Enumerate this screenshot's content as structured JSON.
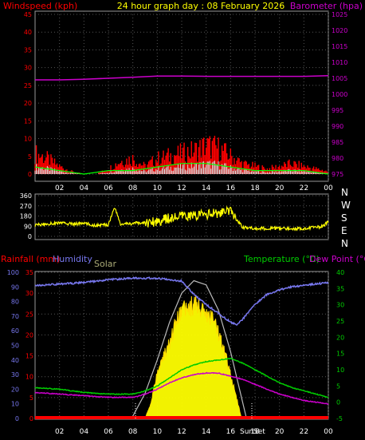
{
  "title": "24 hour graph day : 08 February 2026",
  "colors": {
    "background": "#000000",
    "windspeed": "#ff0000",
    "gust": "#ff0000",
    "wind_avg": "#00ff00",
    "wind_low": "#ffffff",
    "barometer": "#cc00cc",
    "direction": "#ffff00",
    "rainfall": "#ff0000",
    "humidity": "#7777ee",
    "solar": "#ffff00",
    "solar_label": "#aaaa77",
    "temperature": "#00cc00",
    "dewpoint": "#cc00cc",
    "grid": "#555555",
    "axis_text": "#ffffff"
  },
  "x_ticks": [
    "02",
    "04",
    "06",
    "08",
    "10",
    "12",
    "14",
    "16",
    "18",
    "20",
    "22",
    "00"
  ],
  "chart_data": [
    {
      "type": "line",
      "name": "wind-barometer",
      "left_axis_label": "Windspeed (kph)",
      "right_axis_label": "Barometer (hpa)",
      "left_ticks": [
        "0",
        "5",
        "10",
        "15",
        "20",
        "25",
        "30",
        "35",
        "40",
        "45"
      ],
      "right_ticks": [
        "975",
        "980",
        "985",
        "990",
        "995",
        "1000",
        "1005",
        "1010",
        "1015",
        "1020",
        "1025"
      ],
      "left_ylim": [
        0,
        45
      ],
      "right_ylim": [
        975,
        1025
      ],
      "x_range_hours": [
        0,
        24
      ],
      "barometer": {
        "x": [
          0,
          2,
          4,
          6,
          8,
          10,
          12,
          14,
          16,
          18,
          20,
          22,
          24
        ],
        "values": [
          1004.5,
          1004.5,
          1004.7,
          1005,
          1005.3,
          1005.7,
          1005.7,
          1005.6,
          1005.6,
          1005.6,
          1005.6,
          1005.6,
          1005.8
        ]
      },
      "gust_envelope": {
        "x": [
          0,
          1,
          2,
          3,
          4,
          5,
          6,
          7,
          8,
          9,
          10,
          11,
          12,
          13,
          14,
          15,
          16,
          17,
          18,
          19,
          20,
          21,
          22,
          23,
          24
        ],
        "values": [
          8,
          6,
          3,
          1,
          0,
          0,
          2,
          5,
          6,
          3,
          6,
          7,
          8,
          9,
          11,
          10,
          7,
          4,
          3,
          2,
          3,
          4,
          3,
          2,
          1
        ]
      },
      "avg_envelope": {
        "x": [
          0,
          2,
          4,
          6,
          8,
          10,
          12,
          14,
          16,
          18,
          20,
          22,
          24
        ],
        "values": [
          2,
          1,
          0,
          1,
          1,
          2,
          3,
          3,
          2,
          1,
          1,
          1,
          0
        ]
      }
    },
    {
      "type": "line",
      "name": "wind-direction",
      "left_ticks": [
        "0",
        "90",
        "180",
        "270",
        "360"
      ],
      "right_ticks": [
        "N",
        "W",
        "S",
        "E",
        "N"
      ],
      "ylim": [
        0,
        360
      ],
      "direction": {
        "x": [
          0,
          1,
          2,
          3,
          4,
          5,
          6,
          6.5,
          7,
          8,
          9,
          10,
          11,
          12,
          13,
          14,
          15,
          16,
          16.5,
          17,
          18,
          19,
          20,
          21,
          22,
          23,
          23.5,
          24
        ],
        "values": [
          100,
          110,
          120,
          110,
          115,
          95,
          105,
          260,
          105,
          115,
          120,
          135,
          160,
          175,
          185,
          195,
          205,
          220,
          150,
          80,
          70,
          70,
          70,
          70,
          70,
          80,
          85,
          130
        ]
      }
    },
    {
      "type": "line",
      "name": "rain-humidity-temp",
      "rain_label": "Rainfall (mm)",
      "humidity_label": "Humidity",
      "solar_label": "Solar",
      "temp_label": "Temperature (°C)",
      "dew_label": "Dew Point (°C)",
      "sun_label": "Sun",
      "set_label": "Set",
      "left_ticks": [
        "0",
        "5",
        "10",
        "15",
        "20",
        "25",
        "30",
        "35"
      ],
      "left_ylim": [
        0,
        35
      ],
      "humidity_ticks": [
        "0",
        "10",
        "20",
        "30",
        "40",
        "50",
        "60",
        "70",
        "80",
        "90",
        "100"
      ],
      "humidity_ylim": [
        0,
        100
      ],
      "right_ticks": [
        "-5",
        "0",
        "5",
        "10",
        "15",
        "20",
        "25",
        "30",
        "35",
        "40"
      ],
      "right_ylim": [
        -5,
        40
      ],
      "humidity": {
        "x": [
          0,
          2,
          4,
          6,
          8,
          10,
          12,
          13,
          14,
          15,
          16,
          16.5,
          17,
          18,
          19,
          20,
          21,
          22,
          23,
          24
        ],
        "values": [
          91,
          92,
          93,
          95,
          96,
          96,
          94,
          85,
          78,
          72,
          66,
          64,
          68,
          78,
          85,
          88,
          90,
          91,
          92,
          93
        ]
      },
      "temperature": {
        "x": [
          0,
          2,
          4,
          6,
          8,
          9,
          10,
          11,
          12,
          13,
          14,
          15,
          16,
          17,
          18,
          19,
          20,
          21,
          22,
          23,
          24
        ],
        "values": [
          4.5,
          4,
          3,
          2.5,
          2.5,
          3.5,
          5,
          7.5,
          10,
          11.5,
          12.5,
          13,
          13.5,
          12,
          10,
          8,
          6,
          4.5,
          3.5,
          2.5,
          1.5
        ]
      },
      "dewpoint": {
        "x": [
          0,
          2,
          4,
          6,
          8,
          9,
          10,
          11,
          12,
          13,
          14,
          15,
          16,
          17,
          18,
          19,
          20,
          21,
          22,
          23,
          24
        ],
        "values": [
          3,
          2.5,
          2,
          1.5,
          1.5,
          2.5,
          4,
          6,
          7.5,
          8.5,
          9,
          9,
          8,
          7,
          5.5,
          4,
          2.5,
          1.5,
          0.5,
          0,
          -0.5
        ]
      },
      "solar_theoretical": {
        "x": [
          7.9,
          9,
          10,
          11,
          12,
          13,
          14,
          15,
          16,
          17.3
        ],
        "values": [
          0,
          6,
          14,
          23,
          30,
          33,
          32,
          26,
          16,
          0
        ]
      },
      "solar": {
        "x": [
          9,
          9.5,
          10,
          10.5,
          11,
          11.5,
          12,
          12.5,
          13,
          13.5,
          14,
          14.5,
          15,
          15.5,
          16,
          16.5,
          16.9
        ],
        "values": [
          0,
          4,
          12,
          16,
          19,
          24,
          27,
          28,
          29,
          28,
          27,
          25,
          22,
          17,
          11,
          5,
          0
        ]
      }
    }
  ]
}
